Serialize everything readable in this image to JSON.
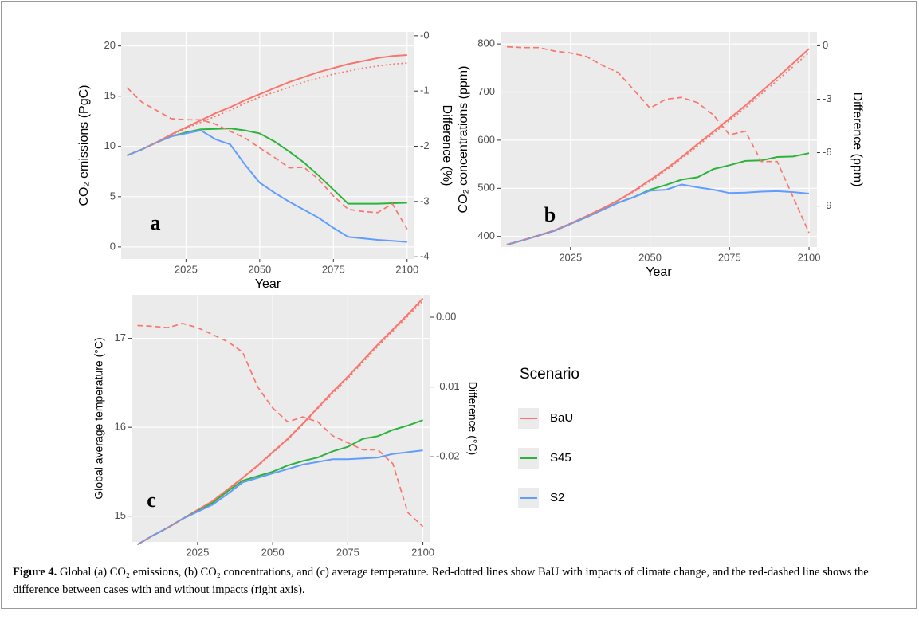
{
  "chart_data": [
    {
      "type": "line",
      "panel_label": "a",
      "xlabel": "Year",
      "ylabel": "CO₂ emissions (PgC)",
      "y2label": "Difference (%)",
      "x": [
        2005,
        2010,
        2015,
        2020,
        2025,
        2030,
        2035,
        2040,
        2045,
        2050,
        2055,
        2060,
        2065,
        2070,
        2075,
        2080,
        2085,
        2090,
        2095,
        2100
      ],
      "xlim": [
        2003,
        2102.5
      ],
      "xticks": [
        2025,
        2050,
        2075,
        2100
      ],
      "ylim": [
        -1.2,
        21.4
      ],
      "yticks": [
        0,
        5,
        10,
        15,
        20
      ],
      "y2lim": [
        -4.04,
        0.07
      ],
      "y2ticks": [
        {
          "value": 0,
          "label": "-0"
        },
        -1,
        -2,
        -3,
        -4
      ],
      "series": [
        {
          "name": "BaU",
          "color": "#F8766D",
          "style": "solid",
          "values": [
            9.1,
            9.7,
            10.4,
            11.2,
            11.9,
            12.6,
            13.3,
            13.9,
            14.6,
            15.2,
            15.8,
            16.4,
            16.9,
            17.4,
            17.8,
            18.2,
            18.5,
            18.8,
            19.0,
            19.1
          ]
        },
        {
          "name": "S45",
          "color": "#2DB33C",
          "style": "solid",
          "values": [
            9.1,
            9.7,
            10.4,
            11.0,
            11.4,
            11.7,
            11.75,
            11.8,
            11.6,
            11.3,
            10.5,
            9.5,
            8.4,
            7.1,
            5.7,
            4.3,
            4.3,
            4.3,
            4.35,
            4.4
          ]
        },
        {
          "name": "S2",
          "color": "#619CFF",
          "style": "solid",
          "values": [
            9.1,
            9.7,
            10.4,
            11.0,
            11.3,
            11.6,
            10.7,
            10.2,
            8.2,
            6.4,
            5.4,
            4.5,
            3.7,
            2.9,
            1.9,
            1.0,
            0.85,
            0.7,
            0.6,
            0.5
          ]
        },
        {
          "color": "#F8766D",
          "style": "dotted",
          "values": [
            9.1,
            9.7,
            10.4,
            11.1,
            11.8,
            12.4,
            13.0,
            13.6,
            14.3,
            14.9,
            15.4,
            15.9,
            16.4,
            16.8,
            17.2,
            17.5,
            17.8,
            18.0,
            18.2,
            18.3
          ]
        },
        {
          "color": "#F8766D",
          "style": "dashed",
          "axis": "y2",
          "values": [
            -0.94,
            -1.2,
            -1.35,
            -1.5,
            -1.52,
            -1.52,
            -1.6,
            -1.73,
            -1.85,
            -2.03,
            -2.2,
            -2.39,
            -2.38,
            -2.6,
            -2.9,
            -3.14,
            -3.18,
            -3.2,
            -3.04,
            -3.5
          ]
        }
      ]
    },
    {
      "type": "line",
      "panel_label": "b",
      "xlabel": "Year",
      "ylabel": "CO₂ concentrations (ppm)",
      "y2label": "Difference (ppm)",
      "x": [
        2005,
        2010,
        2015,
        2020,
        2025,
        2030,
        2035,
        2040,
        2045,
        2050,
        2055,
        2060,
        2065,
        2070,
        2075,
        2080,
        2085,
        2090,
        2095,
        2100
      ],
      "xlim": [
        2003,
        2102.5
      ],
      "xticks": [
        2025,
        2050,
        2075,
        2100
      ],
      "ylim": [
        378,
        825
      ],
      "yticks": [
        400,
        500,
        600,
        700,
        800
      ],
      "y2lim": [
        -11.3,
        0.78
      ],
      "y2ticks": [
        0,
        -3,
        -6,
        -9
      ],
      "series": [
        {
          "name": "BaU",
          "color": "#F8766D",
          "style": "solid",
          "values": [
            383,
            392,
            402,
            413,
            427,
            442,
            458,
            475,
            495,
            517,
            540,
            565,
            592,
            618,
            645,
            672,
            701,
            730,
            760,
            790
          ]
        },
        {
          "name": "S45",
          "color": "#2DB33C",
          "style": "solid",
          "values": [
            383,
            392,
            402,
            412,
            426,
            440,
            455,
            470,
            482,
            497,
            507,
            518,
            523,
            540,
            548,
            557,
            558,
            565,
            566,
            573
          ]
        },
        {
          "name": "S2",
          "color": "#619CFF",
          "style": "solid",
          "values": [
            383,
            392,
            402,
            412,
            426,
            440,
            455,
            470,
            482,
            495,
            497,
            508,
            502,
            497,
            490,
            491,
            493,
            494,
            492,
            489
          ]
        },
        {
          "color": "#F8766D",
          "style": "dotted",
          "values": [
            383,
            392,
            402,
            413,
            426,
            441,
            457,
            474,
            493,
            514,
            537,
            562,
            588,
            614,
            641,
            667,
            696,
            724,
            753,
            782
          ]
        },
        {
          "color": "#F8766D",
          "style": "dashed",
          "axis": "y2",
          "values": [
            -0.05,
            -0.1,
            -0.1,
            -0.3,
            -0.4,
            -0.6,
            -1.1,
            -1.5,
            -2.5,
            -3.5,
            -3,
            -2.9,
            -3.2,
            -3.9,
            -5,
            -4.8,
            -6.5,
            -6.5,
            -8.5,
            -10.5
          ]
        }
      ]
    },
    {
      "type": "line",
      "panel_label": "c",
      "xlabel": "Year",
      "ylabel": "Global average temperature (°C)",
      "y2label": "Difference (°C)",
      "x": [
        2005,
        2010,
        2015,
        2020,
        2025,
        2030,
        2035,
        2040,
        2045,
        2050,
        2055,
        2060,
        2065,
        2070,
        2075,
        2080,
        2085,
        2090,
        2095,
        2100
      ],
      "xlim": [
        2003,
        2102.5
      ],
      "xticks": [
        2025,
        2050,
        2075,
        2100
      ],
      "ylim": [
        14.71,
        17.49
      ],
      "yticks": [
        15,
        16,
        17
      ],
      "y2lim": [
        -0.0322,
        0.0032
      ],
      "y2ticks": [
        {
          "value": 0,
          "label": "0.00"
        },
        -0.01,
        -0.02
      ],
      "series": [
        {
          "name": "BaU",
          "color": "#F8766D",
          "style": "solid",
          "values": [
            14.68,
            14.78,
            14.87,
            14.97,
            15.07,
            15.17,
            15.3,
            15.43,
            15.57,
            15.72,
            15.87,
            16.04,
            16.22,
            16.4,
            16.57,
            16.75,
            16.93,
            17.1,
            17.27,
            17.45
          ]
        },
        {
          "name": "S45",
          "color": "#2DB33C",
          "style": "solid",
          "values": [
            14.68,
            14.78,
            14.87,
            14.97,
            15.06,
            15.15,
            15.28,
            15.4,
            15.45,
            15.5,
            15.57,
            15.62,
            15.66,
            15.73,
            15.78,
            15.87,
            15.9,
            15.97,
            16.02,
            16.08
          ]
        },
        {
          "name": "S2",
          "color": "#619CFF",
          "style": "solid",
          "values": [
            14.68,
            14.78,
            14.87,
            14.97,
            15.05,
            15.13,
            15.25,
            15.38,
            15.43,
            15.48,
            15.53,
            15.58,
            15.61,
            15.64,
            15.64,
            15.65,
            15.66,
            15.7,
            15.72,
            15.74
          ]
        },
        {
          "color": "#F8766D",
          "style": "dotted",
          "values": [
            14.68,
            14.78,
            14.87,
            14.97,
            15.07,
            15.17,
            15.3,
            15.43,
            15.56,
            15.71,
            15.86,
            16.03,
            16.21,
            16.38,
            16.55,
            16.73,
            16.91,
            17.08,
            17.25,
            17.42
          ]
        },
        {
          "color": "#F8766D",
          "style": "dashed",
          "axis": "y2",
          "values": [
            -0.0012,
            -0.0013,
            -0.0015,
            -0.0009,
            -0.0015,
            -0.0025,
            -0.0035,
            -0.005,
            -0.01,
            -0.013,
            -0.015,
            -0.0143,
            -0.015,
            -0.017,
            -0.018,
            -0.019,
            -0.019,
            -0.021,
            -0.028,
            -0.03
          ]
        }
      ]
    }
  ],
  "legend_title": "Scenario",
  "caption": {
    "label": "Figure 4.",
    "text": "Global (a) CO₂ emissions, (b) CO₂ concentrations, and (c) average temperature. Red-dotted lines show BaU with impacts of climate change, and the red-dashed line shows the difference between cases with and without impacts (right axis)."
  }
}
